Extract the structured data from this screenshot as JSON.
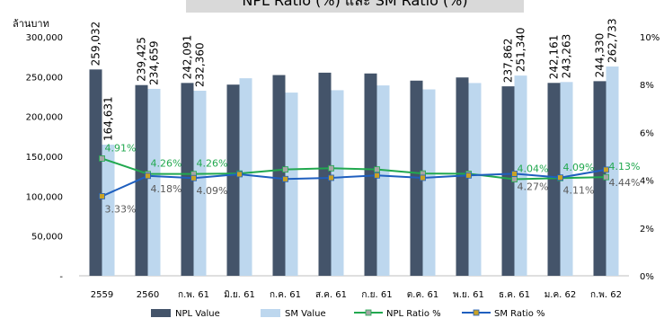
{
  "chart_data": {
    "type": "bar",
    "title": "NPL Ratio (%) และ SM Ratio (%)",
    "y_left_label": "ล้านบาท",
    "categories": [
      "2559",
      "2560",
      "ก.พ. 61",
      "มิ.ย. 61",
      "ก.ค. 61",
      "ส.ค. 61",
      "ก.ย. 61",
      "ต.ค. 61",
      "พ.ย. 61",
      "ธ.ค. 61",
      "ม.ค. 62",
      "ก.พ. 62"
    ],
    "y_left_range": [
      0,
      300000
    ],
    "y_left_ticks": [
      "-",
      "50,000",
      "100,000",
      "150,000",
      "200,000",
      "250,000",
      "300,000"
    ],
    "y_right_range": [
      0,
      10
    ],
    "y_right_ticks": [
      "0%",
      "2%",
      "4%",
      "6%",
      "8%",
      "10%"
    ],
    "grid": false,
    "legend_position": "bottom",
    "series": [
      {
        "name": "NPL Value",
        "kind": "bar",
        "axis": "left",
        "color": "#44546a",
        "values": [
          259032,
          239425,
          242091,
          240000,
          252000,
          255000,
          254000,
          245000,
          249000,
          237862,
          242161,
          244330
        ],
        "labels": [
          "259,032",
          "239,425",
          "242,091",
          "",
          "",
          "",
          "",
          "",
          "",
          "237,862",
          "242,161",
          "244,330"
        ]
      },
      {
        "name": "SM Value",
        "kind": "bar",
        "axis": "left",
        "color": "#bdd7ee",
        "values": [
          164631,
          234659,
          232360,
          248000,
          230000,
          233000,
          239000,
          234000,
          242000,
          251340,
          243263,
          262733
        ],
        "labels": [
          "164,631",
          "234,659",
          "232,360",
          "",
          "",
          "",
          "",
          "",
          "",
          "251,340",
          "243,263",
          "262,733"
        ]
      },
      {
        "name": "NPL Ratio %",
        "kind": "line",
        "axis": "right",
        "color": "#21a84f",
        "marker_color": "#a6a6a6",
        "values": [
          4.91,
          4.26,
          4.26,
          4.28,
          4.45,
          4.5,
          4.45,
          4.28,
          4.27,
          4.04,
          4.09,
          4.13
        ],
        "labels": [
          "4.91%",
          "4.26%",
          "4.26%",
          "",
          "",
          "",
          "",
          "",
          "",
          "4.04%",
          "4.09%",
          "4.13%"
        ]
      },
      {
        "name": "SM Ratio %",
        "kind": "line",
        "axis": "right",
        "color": "#1f5fbf",
        "marker_color": "#c9a227",
        "values": [
          3.33,
          4.18,
          4.09,
          4.25,
          4.05,
          4.1,
          4.2,
          4.1,
          4.2,
          4.27,
          4.11,
          4.44
        ],
        "labels": [
          "3.33%",
          "4.18%",
          "4.09%",
          "",
          "",
          "",
          "",
          "",
          "",
          "4.27%",
          "4.11%",
          "4.44%"
        ]
      }
    ]
  }
}
